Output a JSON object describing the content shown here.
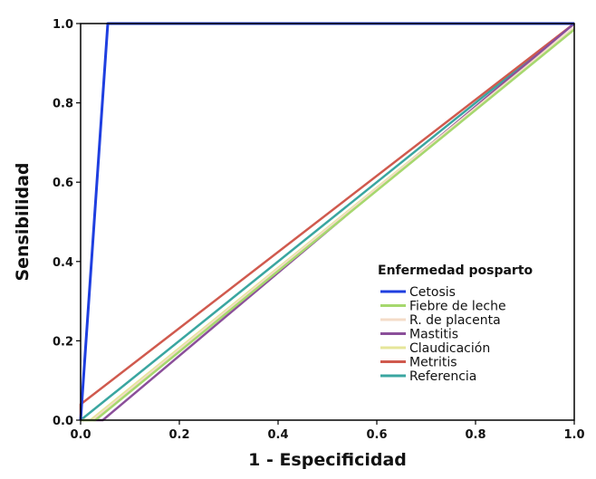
{
  "chart_data": {
    "type": "line",
    "title": "",
    "xlabel": "1 - Especificidad",
    "ylabel": "Sensibilidad",
    "xlim": [
      0,
      1
    ],
    "ylim": [
      0,
      1
    ],
    "x_ticks": [
      "0.0",
      "0.2",
      "0.4",
      "0.6",
      "0.8",
      "1.0"
    ],
    "y_ticks": [
      "0.0",
      "0.2",
      "0.4",
      "0.6",
      "0.8",
      "1.0"
    ],
    "grid": false,
    "legend": {
      "title": "Enfermedad posparto",
      "placement": "bottom-right"
    },
    "series": [
      {
        "name": "Cetosis",
        "color": "#1f3fe0",
        "points": [
          [
            0,
            0
          ],
          [
            0.055,
            1
          ],
          [
            1,
            1
          ]
        ]
      },
      {
        "name": "Fiebre de leche",
        "color": "#a6d86e",
        "points": [
          [
            0,
            0
          ],
          [
            0.03,
            0
          ],
          [
            1,
            0.985
          ]
        ]
      },
      {
        "name": "R. de placenta",
        "color": "#f4dcc8",
        "points": [
          [
            0,
            0
          ],
          [
            0.025,
            0
          ],
          [
            1,
            0.99
          ]
        ]
      },
      {
        "name": "Mastitis",
        "color": "#8b4f9a",
        "points": [
          [
            0,
            0
          ],
          [
            0.045,
            0
          ],
          [
            1,
            1
          ]
        ]
      },
      {
        "name": "Claudicación",
        "color": "#e6e69a",
        "points": [
          [
            0,
            0
          ],
          [
            0.02,
            0
          ],
          [
            1,
            0.99
          ]
        ]
      },
      {
        "name": "Metritis",
        "color": "#d05a4e",
        "points": [
          [
            0,
            0
          ],
          [
            0,
            0.04
          ],
          [
            1,
            1
          ]
        ]
      },
      {
        "name": "Referencia",
        "color": "#3aa6a0",
        "points": [
          [
            0,
            0
          ],
          [
            1,
            1
          ]
        ]
      }
    ]
  }
}
